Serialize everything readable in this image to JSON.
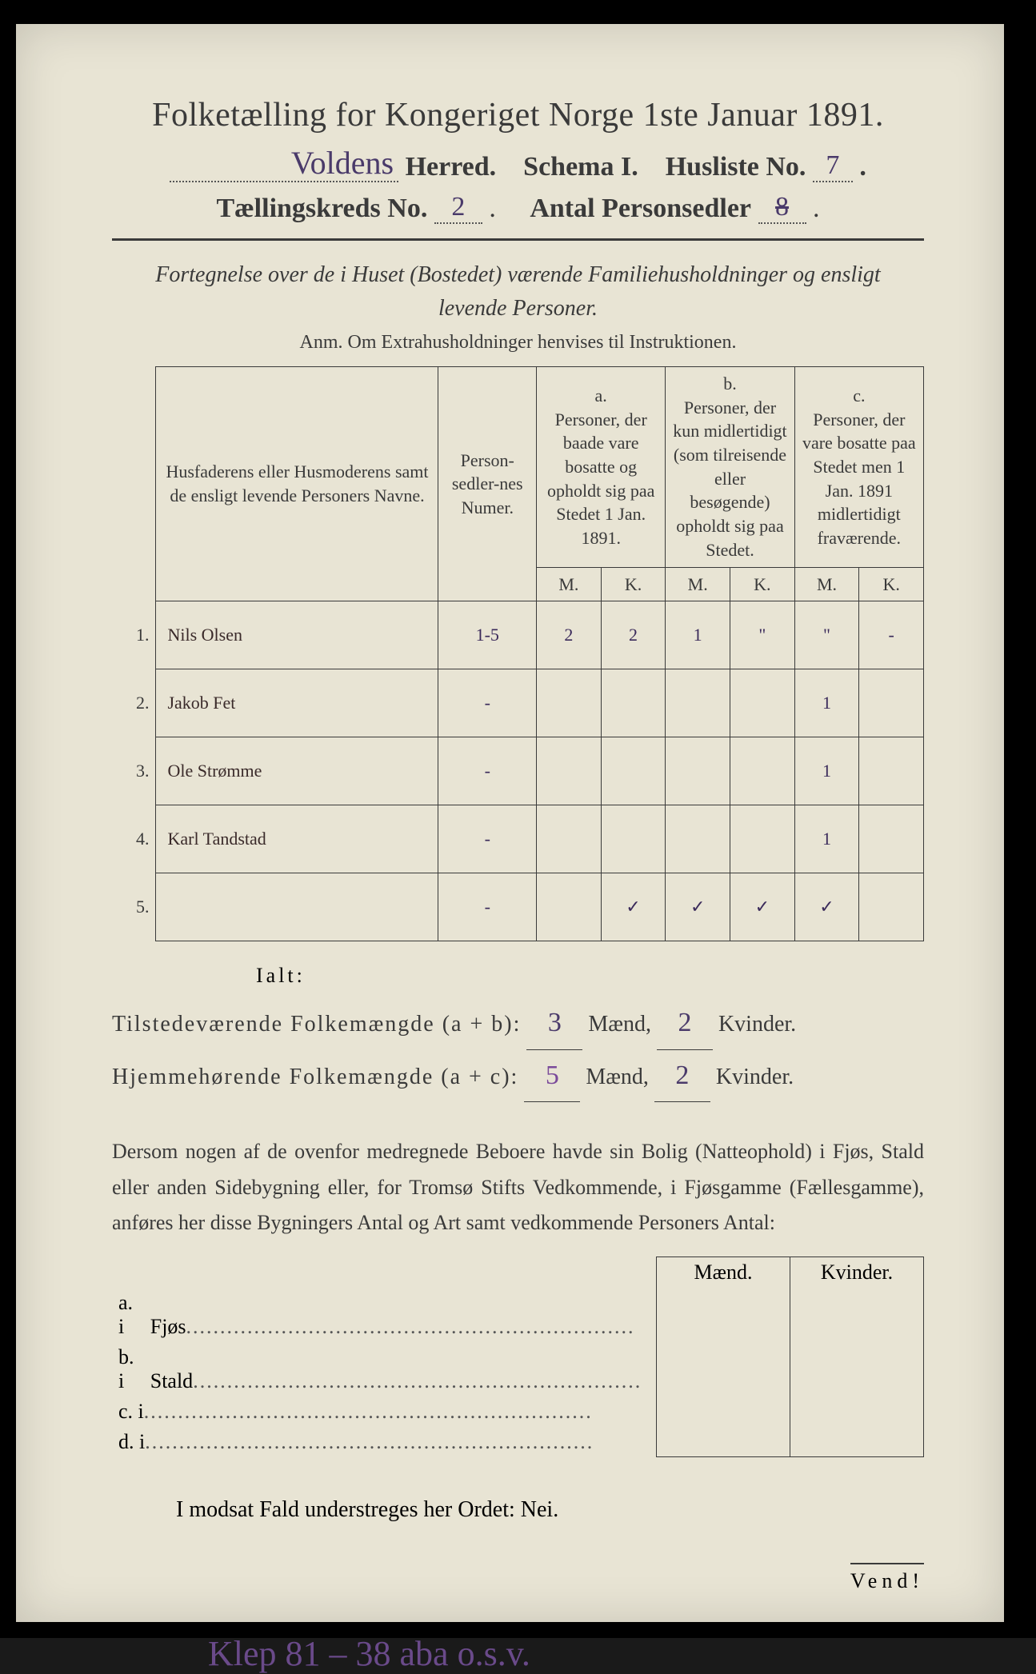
{
  "title": "Folketælling for Kongeriget Norge 1ste Januar 1891.",
  "header": {
    "herred_hand": "Voldens",
    "herred_label": "Herred.",
    "schema_label": "Schema I.",
    "husliste_label": "Husliste No.",
    "husliste_no": "7",
    "kreds_label": "Tællingskreds No.",
    "kreds_no": "2",
    "personsedler_label": "Antal Personsedler",
    "personsedler_no": "8"
  },
  "intro_line1": "Fortegnelse over de i Huset (Bostedet) værende Familiehusholdninger og ensligt",
  "intro_line2": "levende Personer.",
  "anm": "Anm.  Om Extrahusholdninger henvises til Instruktionen.",
  "table": {
    "col_names": "Husfaderens eller Husmoderens samt de ensligt levende Personers Navne.",
    "col_numer": "Person-sedler-nes Numer.",
    "col_a_top": "a.",
    "col_a": "Personer, der baade vare bosatte og opholdt sig paa Stedet 1 Jan. 1891.",
    "col_b_top": "b.",
    "col_b": "Personer, der kun midlertidigt (som tilreisende eller besøgende) opholdt sig paa Stedet.",
    "col_c_top": "c.",
    "col_c": "Personer, der vare bosatte paa Stedet men 1 Jan. 1891 midlertidigt fraværende.",
    "mk_m": "M.",
    "mk_k": "K.",
    "rows": [
      {
        "n": "1.",
        "name": "Nils Olsen",
        "numer": "1-5",
        "a_m": "2",
        "a_k": "2",
        "b_m": "1",
        "b_k": "\"",
        "c_m": "\"",
        "c_k": "-"
      },
      {
        "n": "2.",
        "name": "Jakob Fet",
        "numer": "-",
        "a_m": "",
        "a_k": "",
        "b_m": "",
        "b_k": "",
        "c_m": "1",
        "c_k": ""
      },
      {
        "n": "3.",
        "name": "Ole Strømme",
        "numer": "-",
        "a_m": "",
        "a_k": "",
        "b_m": "",
        "b_k": "",
        "c_m": "1",
        "c_k": ""
      },
      {
        "n": "4.",
        "name": "Karl Tandstad",
        "numer": "-",
        "a_m": "",
        "a_k": "",
        "b_m": "",
        "b_k": "",
        "c_m": "1",
        "c_k": ""
      },
      {
        "n": "5.",
        "name": "",
        "numer": "-",
        "a_m": "",
        "a_k": "✓",
        "b_m": "✓",
        "b_k": "✓",
        "c_m": "✓",
        "c_k": ""
      }
    ]
  },
  "ialt": "Ialt:",
  "totals": {
    "line1_label": "Tilstedeværende Folkemængde (a + b):",
    "line1_m": "3",
    "line1_between": "Mænd,",
    "line1_k": "2",
    "line1_end": "Kvinder.",
    "line2_label": "Hjemmehørende Folkemængde (a + c):",
    "line2_m": "5",
    "line2_k": "2"
  },
  "para": "Dersom nogen af de ovenfor medregnede Beboere havde sin Bolig (Natteophold) i Fjøs, Stald eller anden Sidebygning eller, for Tromsø Stifts Vedkommende, i Fjøsgamme (Fællesgamme), anføres her disse Bygningers Antal og Art samt vedkommende Personers Antal:",
  "side": {
    "head_m": "Mænd.",
    "head_k": "Kvinder.",
    "a_label": "a.  i",
    "a_name": "Fjøs",
    "b_label": "b.  i",
    "b_name": "Stald",
    "c_label": "c.  i",
    "d_label": "d.  i"
  },
  "nei_line": "I modsat Fald understreges her Ordet: Nei.",
  "vend": "Vend!",
  "bottom_hand": "Klep 81 – 38 aba  o.s.v."
}
